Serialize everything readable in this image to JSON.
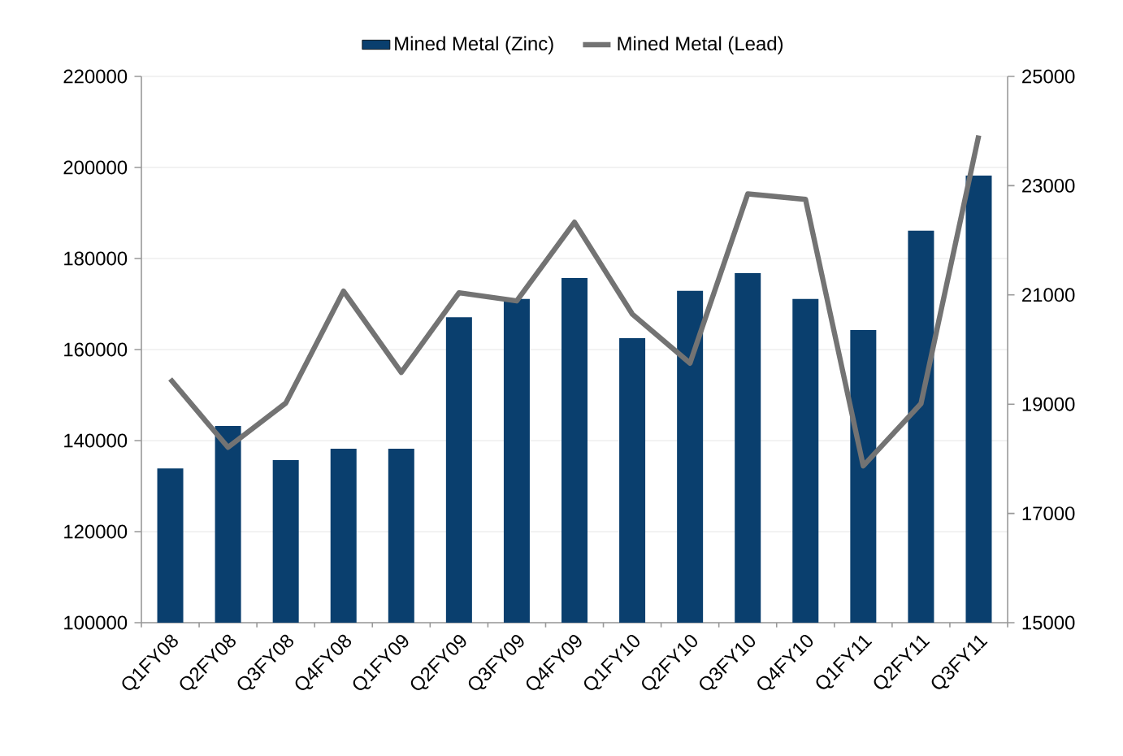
{
  "chart_data": {
    "type": "bar",
    "categories": [
      "Q1FY08",
      "Q2FY08",
      "Q3FY08",
      "Q4FY08",
      "Q1FY09",
      "Q2FY09",
      "Q3FY09",
      "Q4FY09",
      "Q1FY10",
      "Q2FY10",
      "Q3FY10",
      "Q4FY10",
      "Q1FY11",
      "Q2FY11",
      "Q3FY11"
    ],
    "series": [
      {
        "name": "Mined Metal (Zinc)",
        "color": "#0a3f6e",
        "values": [
          133900,
          143200,
          135700,
          138200,
          138200,
          167100,
          171100,
          175700,
          162500,
          172900,
          176800,
          171100,
          164300,
          186100,
          198200
        ]
      },
      {
        "name": "Mined Metal (Lead)",
        "type": "line",
        "axis": "y2",
        "color": "#737373",
        "values": [
          19460,
          18210,
          19020,
          21070,
          19580,
          21040,
          20890,
          22330,
          20650,
          19750,
          22850,
          22750,
          17870,
          19010,
          23920
        ]
      }
    ],
    "ylim": [
      100000,
      220000
    ],
    "yticks": [
      100000,
      120000,
      140000,
      160000,
      180000,
      200000,
      220000
    ],
    "y2lim": [
      15000,
      25000
    ],
    "y2ticks": [
      15000,
      17000,
      19000,
      21000,
      23000,
      25000
    ],
    "grid": "y",
    "legend": "top"
  }
}
